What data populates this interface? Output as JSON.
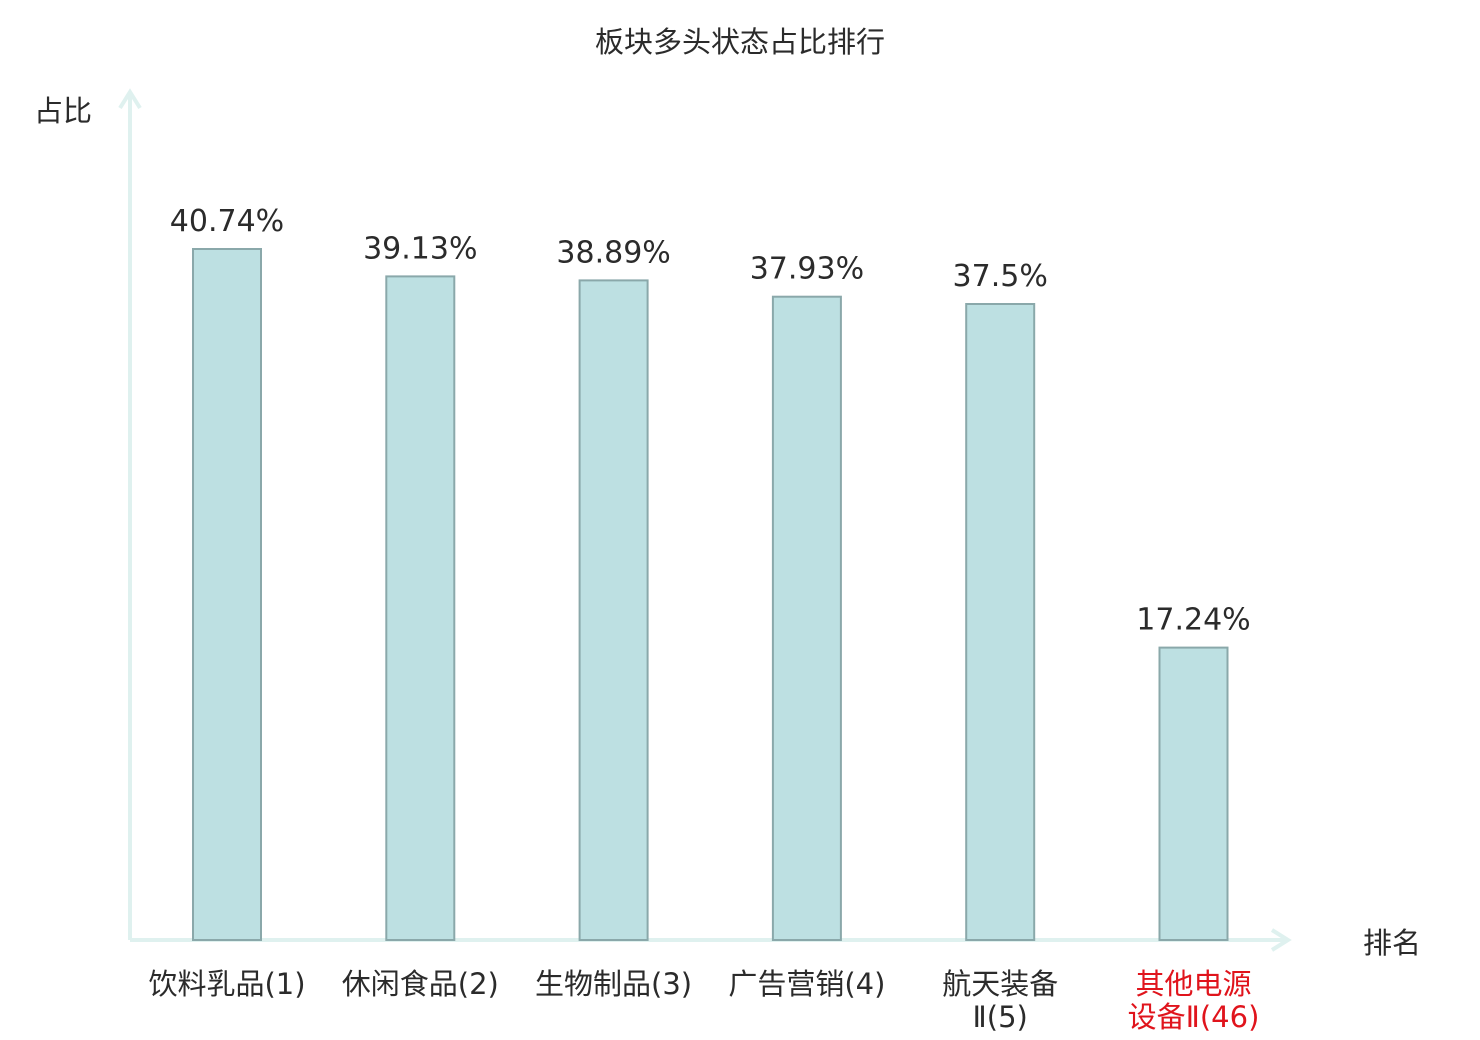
{
  "chart_data": {
    "type": "bar",
    "title": "板块多头状态占比排行",
    "ylabel": "占比",
    "xlabel": "排名",
    "categories": [
      "饮料乳品(1)",
      "休闲食品(2)",
      "生物制品(3)",
      "广告营销(4)",
      "航天装备Ⅱ(5)",
      "其他电源设备Ⅱ(46)"
    ],
    "category_lines": [
      [
        "饮料乳品(1)"
      ],
      [
        "休闲食品(2)"
      ],
      [
        "生物制品(3)"
      ],
      [
        "广告营销(4)"
      ],
      [
        "航天装备",
        "Ⅱ(5)"
      ],
      [
        "其他电源",
        "设备Ⅱ(46)"
      ]
    ],
    "values": [
      40.74,
      39.13,
      38.89,
      37.93,
      37.5,
      17.24
    ],
    "value_labels": [
      "40.74%",
      "39.13%",
      "38.89%",
      "37.93%",
      "37.5%",
      "17.24%"
    ],
    "highlight_index": 5,
    "ylim": [
      0,
      50
    ],
    "grid": false,
    "legend": "none",
    "colors": {
      "bar_fill": "#bde0e2",
      "bar_stroke": "#8aa8aa",
      "axis": "#dff1ef",
      "text": "#2b2b2b",
      "highlight_text": "#e0141c"
    }
  }
}
